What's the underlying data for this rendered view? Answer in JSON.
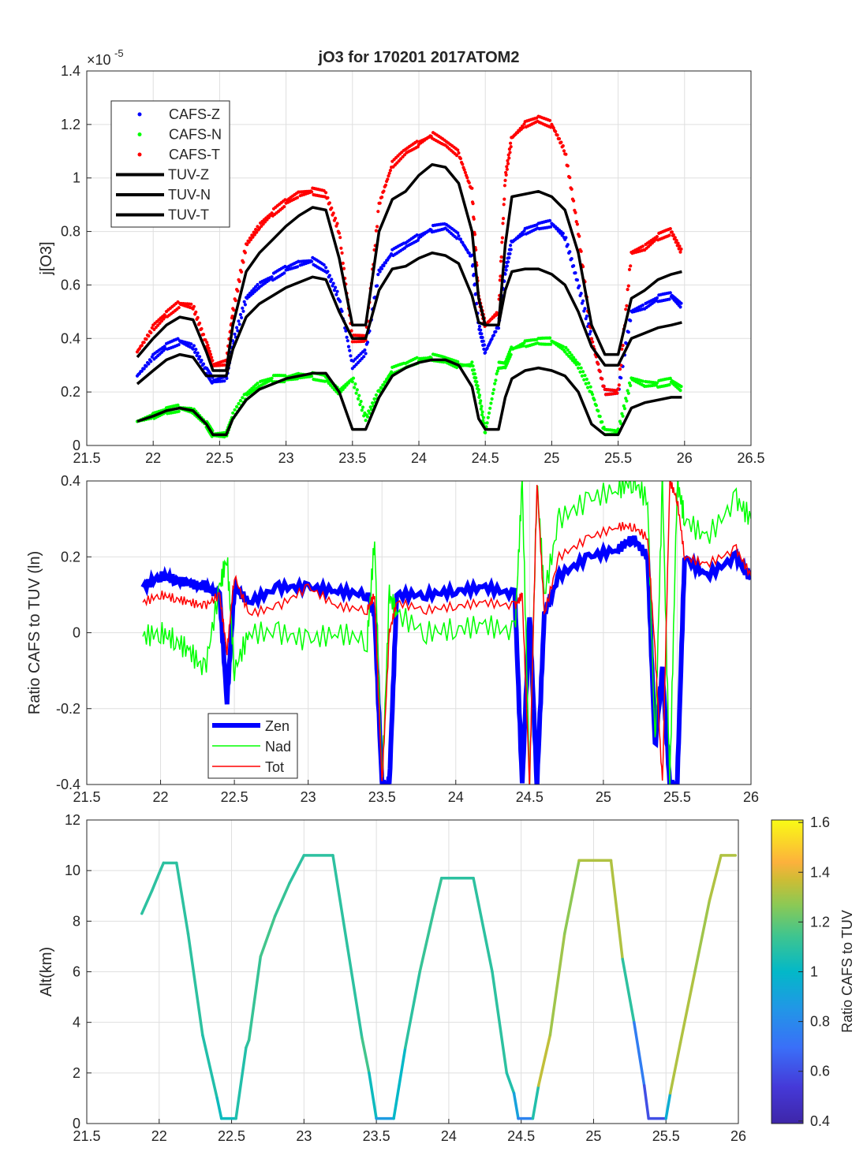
{
  "chart_data": [
    {
      "type": "scatter",
      "title": "jO3 for 170201 2017ATOM2",
      "xlabel": "",
      "ylabel": "j[O3]",
      "y_exponent_label": "×10",
      "y_exponent": "-5",
      "xlim": [
        21.5,
        26.5
      ],
      "ylim": [
        0,
        1.4
      ],
      "grid": true,
      "legend_position": "top-left",
      "xticks": [
        "21.5",
        "22",
        "22.5",
        "23",
        "23.5",
        "24",
        "24.5",
        "25",
        "25.5",
        "26",
        "26.5"
      ],
      "yticks": [
        "0",
        "0.2",
        "0.4",
        "0.6",
        "0.8",
        "1",
        "1.2",
        "1.4"
      ],
      "x": [
        21.88,
        22.0,
        22.1,
        22.2,
        22.3,
        22.4,
        22.45,
        22.55,
        22.6,
        22.7,
        22.8,
        22.9,
        23.0,
        23.1,
        23.2,
        23.3,
        23.4,
        23.5,
        23.6,
        23.7,
        23.8,
        23.9,
        24.0,
        24.1,
        24.2,
        24.3,
        24.4,
        24.45,
        24.5,
        24.6,
        24.65,
        24.7,
        24.8,
        24.9,
        25.0,
        25.1,
        25.2,
        25.3,
        25.4,
        25.5,
        25.6,
        25.7,
        25.8,
        25.9,
        25.98
      ],
      "series": [
        {
          "name": "CAFS-Z",
          "kind": "dots",
          "color": "#0000ff",
          "values": [
            0.26,
            0.33,
            0.37,
            0.39,
            0.37,
            0.28,
            0.24,
            0.25,
            0.38,
            0.55,
            0.6,
            0.63,
            0.66,
            0.68,
            0.69,
            0.66,
            0.55,
            0.3,
            0.35,
            0.65,
            0.72,
            0.75,
            0.78,
            0.81,
            0.82,
            0.78,
            0.7,
            0.45,
            0.35,
            0.45,
            0.65,
            0.76,
            0.8,
            0.82,
            0.83,
            0.78,
            0.6,
            0.4,
            0.2,
            0.2,
            0.5,
            0.52,
            0.55,
            0.56,
            0.52
          ]
        },
        {
          "name": "CAFS-N",
          "kind": "dots",
          "color": "#00ff00",
          "values": [
            0.09,
            0.11,
            0.13,
            0.14,
            0.13,
            0.08,
            0.04,
            0.04,
            0.11,
            0.19,
            0.23,
            0.25,
            0.25,
            0.26,
            0.26,
            0.25,
            0.2,
            0.25,
            0.1,
            0.2,
            0.28,
            0.3,
            0.32,
            0.33,
            0.32,
            0.3,
            0.3,
            0.2,
            0.05,
            0.3,
            0.3,
            0.36,
            0.38,
            0.39,
            0.39,
            0.36,
            0.3,
            0.2,
            0.05,
            0.05,
            0.25,
            0.23,
            0.23,
            0.24,
            0.21
          ]
        },
        {
          "name": "CAFS-T",
          "kind": "dots",
          "color": "#ff0000",
          "values": [
            0.35,
            0.44,
            0.49,
            0.53,
            0.52,
            0.38,
            0.3,
            0.31,
            0.5,
            0.75,
            0.82,
            0.87,
            0.91,
            0.94,
            0.95,
            0.94,
            0.8,
            0.4,
            0.4,
            0.9,
            1.05,
            1.1,
            1.13,
            1.16,
            1.13,
            1.09,
            0.95,
            0.55,
            0.45,
            0.5,
            1.0,
            1.15,
            1.2,
            1.22,
            1.2,
            1.1,
            0.8,
            0.4,
            0.2,
            0.2,
            0.72,
            0.74,
            0.78,
            0.8,
            0.72
          ]
        },
        {
          "name": "TUV-Z",
          "kind": "line",
          "color": "#000000",
          "values": [
            0.33,
            0.4,
            0.45,
            0.48,
            0.47,
            0.35,
            0.28,
            0.28,
            0.45,
            0.65,
            0.72,
            0.77,
            0.82,
            0.86,
            0.89,
            0.88,
            0.7,
            0.45,
            0.45,
            0.8,
            0.92,
            0.95,
            1.01,
            1.05,
            1.04,
            0.98,
            0.8,
            0.55,
            0.45,
            0.45,
            0.75,
            0.93,
            0.94,
            0.95,
            0.93,
            0.88,
            0.72,
            0.45,
            0.34,
            0.34,
            0.55,
            0.58,
            0.62,
            0.64,
            0.65
          ]
        },
        {
          "name": "TUV-N",
          "kind": "line",
          "color": "#000000",
          "values": [
            0.09,
            0.11,
            0.13,
            0.14,
            0.13,
            0.08,
            0.04,
            0.04,
            0.1,
            0.17,
            0.21,
            0.23,
            0.25,
            0.26,
            0.27,
            0.27,
            0.2,
            0.06,
            0.06,
            0.18,
            0.26,
            0.29,
            0.31,
            0.32,
            0.32,
            0.3,
            0.22,
            0.1,
            0.06,
            0.06,
            0.18,
            0.25,
            0.28,
            0.29,
            0.28,
            0.26,
            0.2,
            0.08,
            0.04,
            0.04,
            0.14,
            0.16,
            0.17,
            0.18,
            0.18
          ]
        },
        {
          "name": "TUV-T",
          "kind": "line",
          "color": "#000000",
          "values": [
            0.23,
            0.28,
            0.32,
            0.34,
            0.33,
            0.26,
            0.26,
            0.26,
            0.36,
            0.48,
            0.53,
            0.56,
            0.59,
            0.61,
            0.63,
            0.62,
            0.5,
            0.4,
            0.4,
            0.58,
            0.66,
            0.67,
            0.7,
            0.72,
            0.71,
            0.68,
            0.56,
            0.46,
            0.45,
            0.45,
            0.58,
            0.65,
            0.66,
            0.66,
            0.64,
            0.6,
            0.5,
            0.37,
            0.3,
            0.3,
            0.4,
            0.42,
            0.44,
            0.45,
            0.46
          ]
        }
      ]
    },
    {
      "type": "line",
      "title": "",
      "xlabel": "",
      "ylabel": "Ratio CAFS to TUV (ln)",
      "xlim": [
        21.5,
        26
      ],
      "ylim": [
        -0.4,
        0.4
      ],
      "grid": true,
      "legend_position": "bottom-left",
      "xticks": [
        "21.5",
        "22",
        "22.5",
        "23",
        "23.5",
        "24",
        "24.5",
        "25",
        "25.5",
        "26"
      ],
      "yticks": [
        "-0.4",
        "-0.2",
        "0",
        "0.2",
        "0.4"
      ],
      "x": [
        21.88,
        22.0,
        22.1,
        22.2,
        22.3,
        22.4,
        22.45,
        22.5,
        22.6,
        22.8,
        23.0,
        23.2,
        23.4,
        23.45,
        23.5,
        23.55,
        23.6,
        23.8,
        24.0,
        24.2,
        24.4,
        24.45,
        24.5,
        24.55,
        24.6,
        24.7,
        24.9,
        25.1,
        25.2,
        25.3,
        25.35,
        25.4,
        25.45,
        25.5,
        25.55,
        25.7,
        25.9,
        26.0
      ],
      "series": [
        {
          "name": "Zen",
          "color": "#0000ff",
          "values": [
            0.12,
            0.15,
            0.14,
            0.13,
            0.12,
            0.1,
            -0.18,
            0.12,
            0.08,
            0.12,
            0.12,
            0.11,
            0.1,
            0.05,
            -0.4,
            -0.4,
            0.1,
            0.1,
            0.11,
            0.12,
            0.1,
            -0.4,
            0.05,
            -0.4,
            0.05,
            0.15,
            0.2,
            0.22,
            0.25,
            0.2,
            -0.3,
            -0.1,
            -0.4,
            -0.4,
            0.2,
            0.15,
            0.2,
            0.14
          ]
        },
        {
          "name": "Nad",
          "color": "#00ff00",
          "values": [
            -0.01,
            0.0,
            -0.02,
            -0.05,
            -0.1,
            0.12,
            0.2,
            -0.1,
            0.0,
            0.0,
            -0.02,
            0.0,
            -0.02,
            0.25,
            -0.4,
            0.1,
            0.05,
            0.0,
            0.01,
            0.02,
            0.0,
            0.4,
            -0.4,
            0.4,
            0.1,
            0.3,
            0.35,
            0.38,
            0.4,
            0.35,
            -0.3,
            0.4,
            -0.4,
            0.4,
            0.3,
            0.25,
            0.35,
            0.3
          ]
        },
        {
          "name": "Tot",
          "color": "#ff0000",
          "values": [
            0.08,
            0.1,
            0.09,
            0.08,
            0.07,
            0.1,
            -0.05,
            0.15,
            0.05,
            0.07,
            0.12,
            0.07,
            0.06,
            0.1,
            -0.4,
            0.0,
            0.08,
            0.06,
            0.07,
            0.08,
            0.07,
            0.1,
            -0.4,
            0.4,
            0.05,
            0.2,
            0.25,
            0.28,
            0.28,
            0.25,
            -0.05,
            -0.4,
            0.4,
            0.35,
            0.2,
            0.18,
            0.22,
            0.15
          ]
        }
      ]
    },
    {
      "type": "line",
      "title": "",
      "xlabel": "",
      "ylabel": "Alt(km)",
      "xlim": [
        21.5,
        26
      ],
      "ylim": [
        0,
        12
      ],
      "grid": true,
      "xticks": [
        "21.5",
        "22",
        "22.5",
        "23",
        "23.5",
        "24",
        "24.5",
        "25",
        "25.5",
        "26"
      ],
      "yticks": [
        "0",
        "2",
        "4",
        "6",
        "8",
        "10",
        "12"
      ],
      "colorbar": {
        "label": "Ratio CAFS to TUV",
        "range": [
          0.39,
          1.61
        ],
        "ticks": [
          "0.4",
          "0.6",
          "0.8",
          "1",
          "1.2",
          "1.4",
          "1.6"
        ],
        "colormap": "parula"
      },
      "x": [
        21.88,
        21.95,
        22.0,
        22.03,
        22.12,
        22.2,
        22.3,
        22.4,
        22.43,
        22.53,
        22.6,
        22.62,
        22.7,
        22.8,
        22.9,
        23.0,
        23.2,
        23.3,
        23.4,
        23.45,
        23.5,
        23.62,
        23.7,
        23.8,
        23.9,
        23.95,
        24.17,
        24.3,
        24.4,
        24.45,
        24.48,
        24.58,
        24.62,
        24.7,
        24.8,
        24.9,
        25.12,
        25.2,
        25.28,
        25.35,
        25.38,
        25.5,
        25.53,
        25.6,
        25.7,
        25.8,
        25.88,
        25.98
      ],
      "alt": [
        8.3,
        9.2,
        9.9,
        10.3,
        10.3,
        7.5,
        3.5,
        1.0,
        0.2,
        0.2,
        3.0,
        3.3,
        6.6,
        8.2,
        9.5,
        10.6,
        10.6,
        7.0,
        3.4,
        2.0,
        0.2,
        0.2,
        3.0,
        6.0,
        8.5,
        9.7,
        9.7,
        6.0,
        2.0,
        1.2,
        0.2,
        0.2,
        1.5,
        3.5,
        7.5,
        10.4,
        10.4,
        6.5,
        4.0,
        1.5,
        0.2,
        0.2,
        1.2,
        3.2,
        6.0,
        8.8,
        10.6,
        10.6
      ],
      "ratio": [
        1.1,
        1.1,
        1.1,
        1.1,
        1.1,
        1.1,
        1.1,
        1.05,
        1.0,
        1.05,
        1.1,
        1.1,
        1.15,
        1.15,
        1.1,
        1.1,
        1.1,
        1.1,
        1.1,
        1.2,
        0.85,
        0.9,
        1.1,
        1.1,
        1.15,
        1.1,
        1.1,
        1.1,
        1.1,
        1.05,
        0.75,
        0.8,
        1.35,
        1.35,
        1.25,
        1.3,
        1.35,
        1.3,
        0.9,
        0.6,
        0.6,
        0.6,
        1.3,
        1.35,
        1.3,
        1.3,
        1.35,
        1.3
      ]
    }
  ]
}
